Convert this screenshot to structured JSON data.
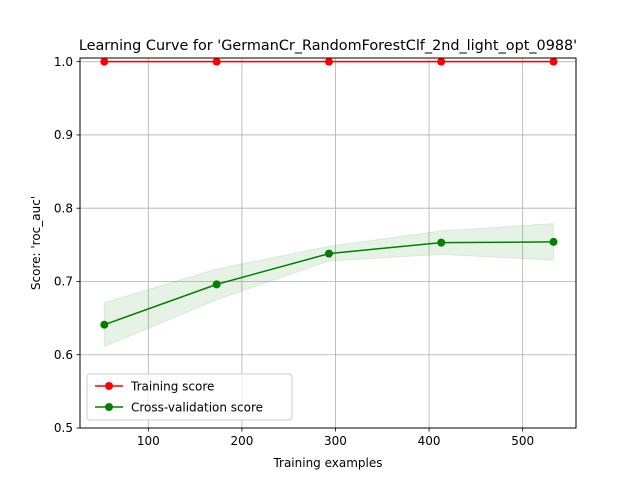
{
  "chart_data": {
    "type": "line",
    "title": "Learning Curve for 'GermanCr_RandomForestClf_2nd_light_opt_0988'",
    "xlabel": "Training examples",
    "ylabel": "Score: 'roc_auc'",
    "xlim": [
      27,
      557
    ],
    "ylim": [
      0.5,
      1.005
    ],
    "xticks": [
      100,
      200,
      300,
      400,
      500
    ],
    "yticks": [
      0.5,
      0.6,
      0.7,
      0.8,
      0.9,
      1.0
    ],
    "xtick_labels": [
      "100",
      "200",
      "300",
      "400",
      "500"
    ],
    "ytick_labels": [
      "0.5",
      "0.6",
      "0.7",
      "0.8",
      "0.9",
      "1.0"
    ],
    "grid": true,
    "legend_position": "lower-left",
    "x": [
      53,
      173,
      293,
      413,
      533
    ],
    "series": [
      {
        "name": "Training score",
        "color": "#ff0000",
        "values": [
          1.0,
          1.0,
          1.0,
          1.0,
          1.0
        ],
        "band_low": [
          1.0,
          1.0,
          1.0,
          1.0,
          1.0
        ],
        "band_high": [
          1.0,
          1.0,
          1.0,
          1.0,
          1.0
        ]
      },
      {
        "name": "Cross-validation score",
        "color": "#008000",
        "values": [
          0.641,
          0.696,
          0.738,
          0.753,
          0.754
        ],
        "band_low": [
          0.611,
          0.675,
          0.728,
          0.737,
          0.729
        ],
        "band_high": [
          0.671,
          0.717,
          0.748,
          0.769,
          0.779
        ]
      }
    ]
  }
}
